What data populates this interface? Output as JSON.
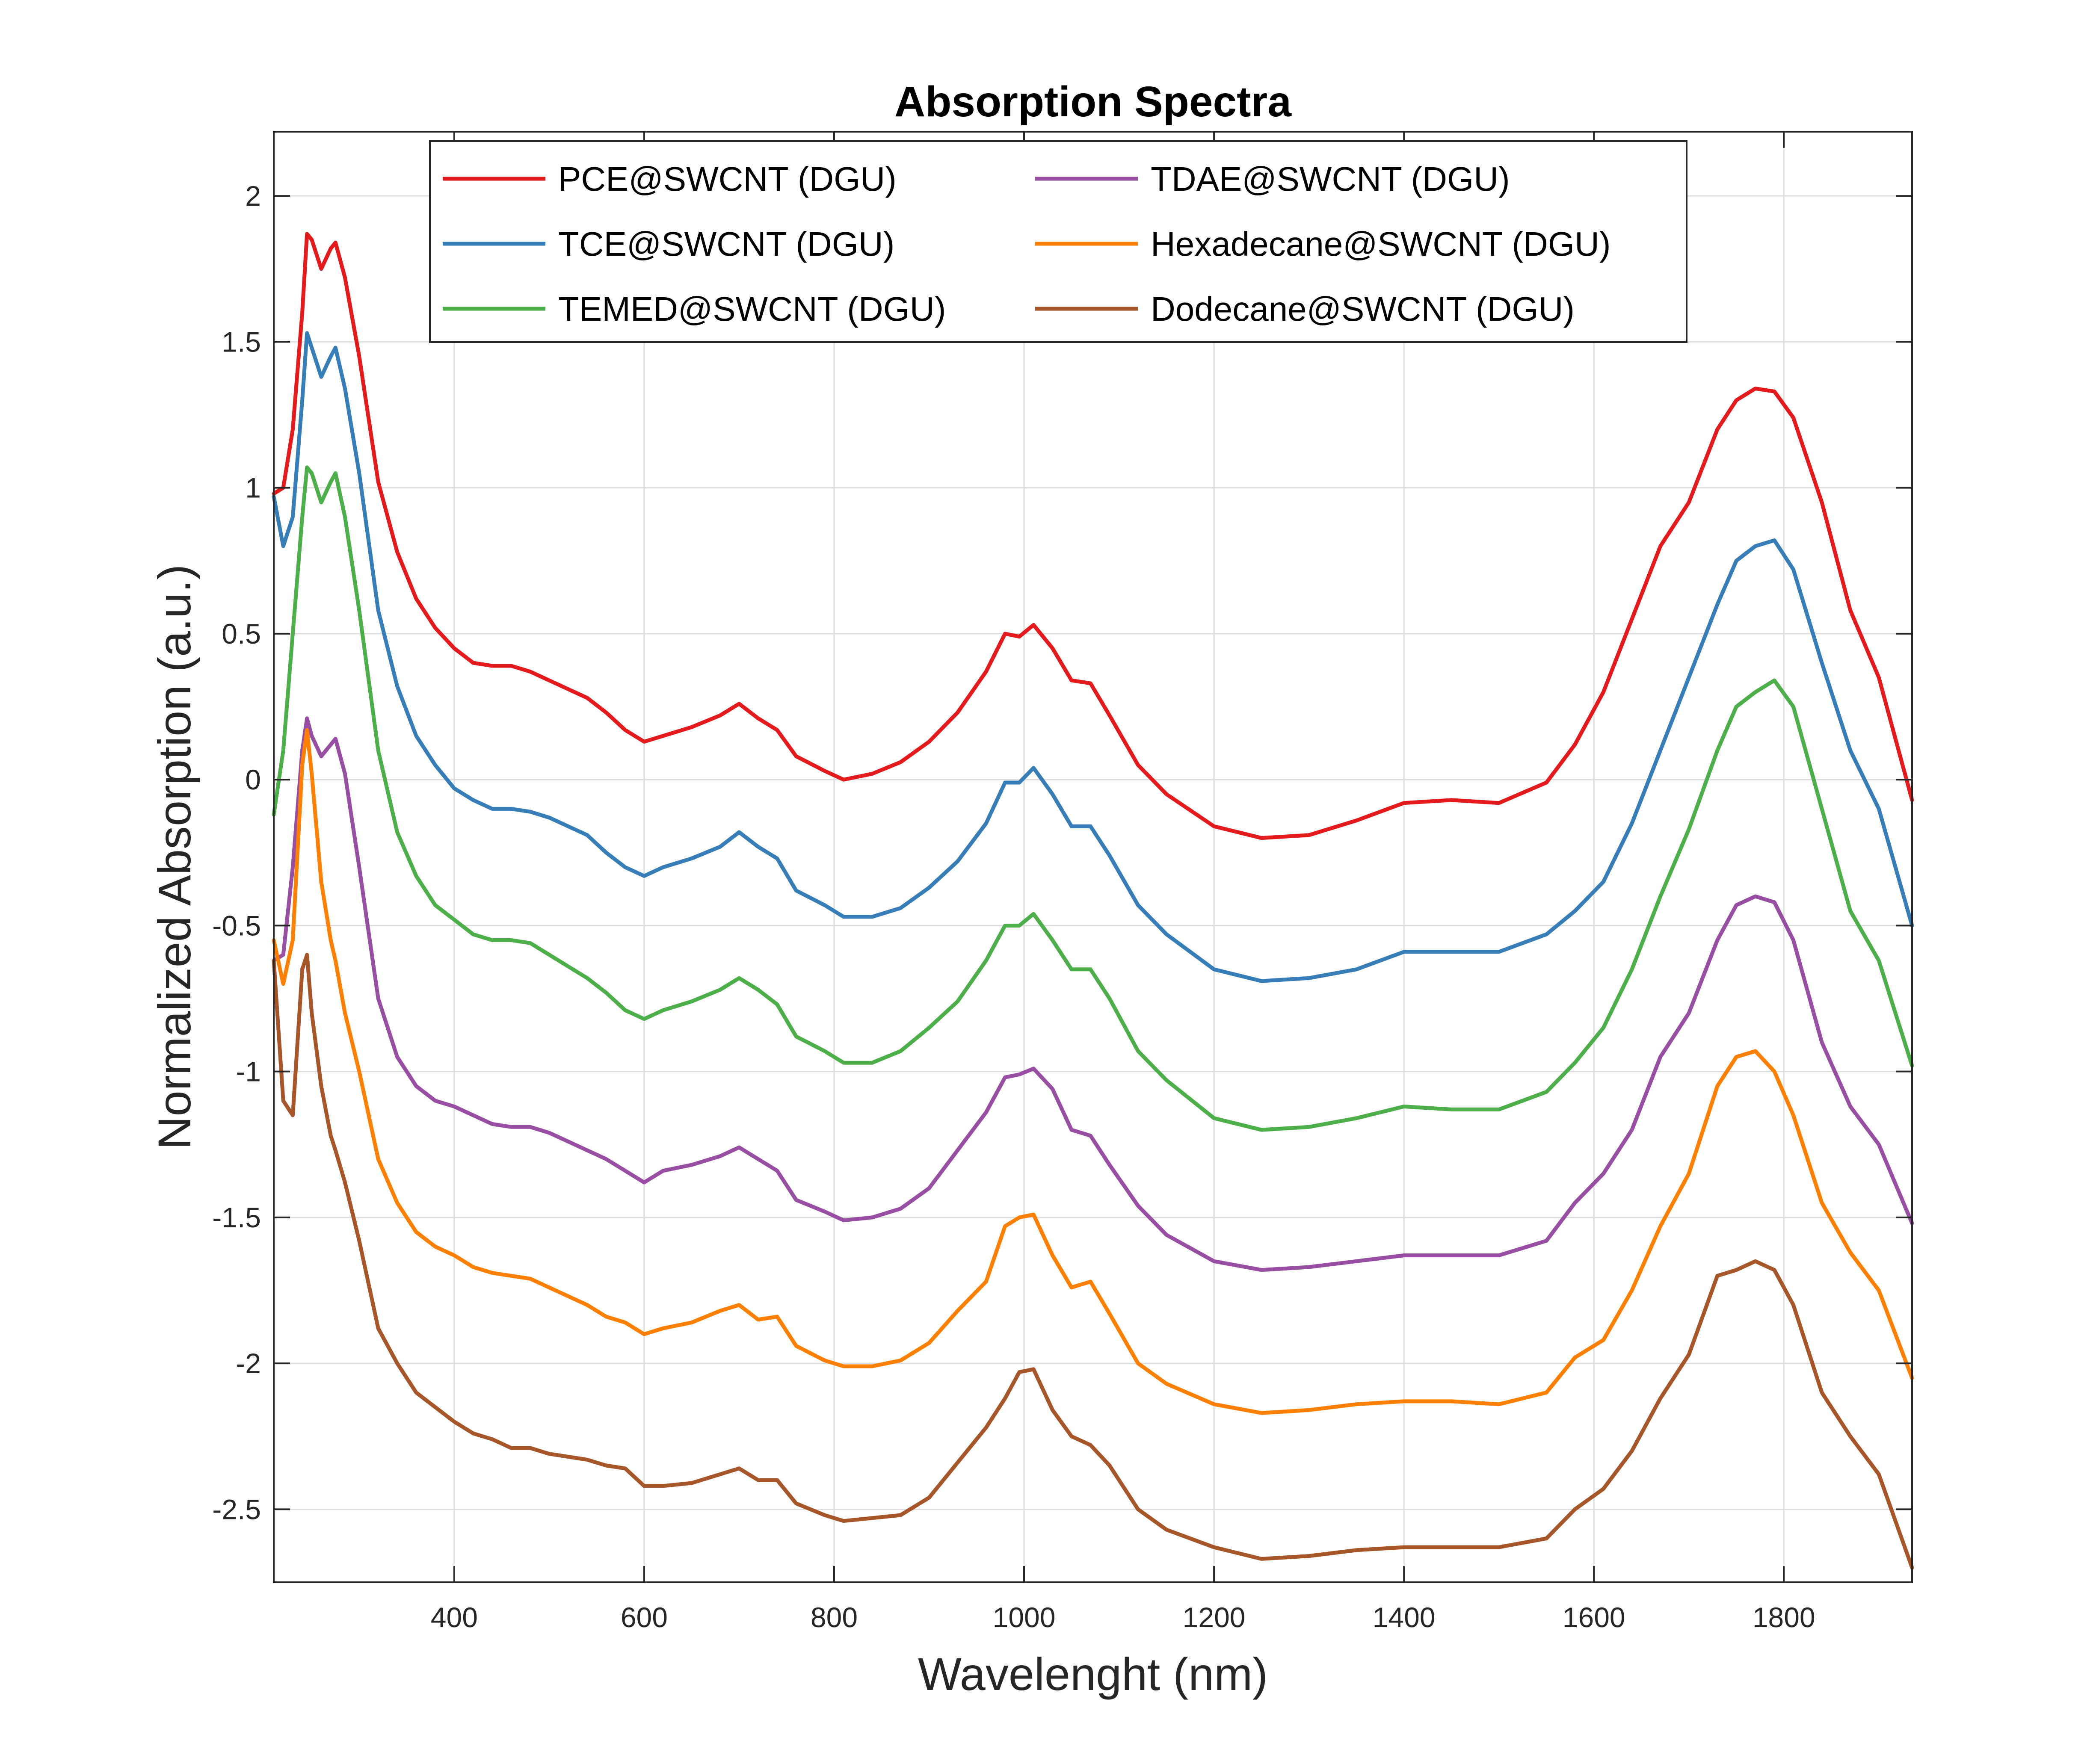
{
  "chart_data": {
    "type": "line",
    "title": "Absorption Spectra",
    "xlabel": "Wavelenght (nm)",
    "ylabel": "Normalized Absorption (a.u.)",
    "xlim": [
      210,
      1935
    ],
    "ylim": [
      -2.75,
      2.22
    ],
    "xticks": [
      400,
      600,
      800,
      1000,
      1200,
      1400,
      1600,
      1800
    ],
    "yticks": [
      2,
      1.5,
      1,
      0.5,
      0,
      -0.5,
      -1,
      -1.5,
      -2,
      -2.5
    ],
    "xtick_labels": [
      "400",
      "600",
      "800",
      "1000",
      "1200",
      "1400",
      "1600",
      "1800"
    ],
    "ytick_labels": [
      "2",
      "1.5",
      "1",
      "0.5",
      "0",
      "-0.5",
      "-1",
      "-1.5",
      "-2",
      "-2.5"
    ],
    "grid": true,
    "legend_position": "top-center, two columns",
    "x": [
      210,
      220,
      230,
      240,
      245,
      250,
      260,
      270,
      275,
      285,
      300,
      320,
      340,
      360,
      380,
      400,
      420,
      440,
      460,
      480,
      500,
      520,
      540,
      560,
      580,
      600,
      620,
      650,
      680,
      700,
      720,
      740,
      760,
      790,
      810,
      840,
      870,
      900,
      930,
      960,
      980,
      995,
      1010,
      1030,
      1050,
      1070,
      1090,
      1120,
      1150,
      1200,
      1250,
      1300,
      1350,
      1400,
      1450,
      1500,
      1550,
      1580,
      1610,
      1640,
      1670,
      1700,
      1730,
      1750,
      1770,
      1790,
      1810,
      1840,
      1870,
      1900,
      1935
    ],
    "series": [
      {
        "name": "PCE@SWCNT (DGU)",
        "color": "#e41a1c",
        "values": [
          0.98,
          1.0,
          1.2,
          1.6,
          1.87,
          1.85,
          1.75,
          1.82,
          1.84,
          1.72,
          1.45,
          1.02,
          0.78,
          0.62,
          0.52,
          0.45,
          0.4,
          0.39,
          0.39,
          0.37,
          0.34,
          0.31,
          0.28,
          0.23,
          0.17,
          0.13,
          0.15,
          0.18,
          0.22,
          0.26,
          0.21,
          0.17,
          0.08,
          0.03,
          0.0,
          0.02,
          0.06,
          0.13,
          0.23,
          0.37,
          0.5,
          0.49,
          0.53,
          0.45,
          0.34,
          0.33,
          0.22,
          0.05,
          -0.05,
          -0.16,
          -0.2,
          -0.19,
          -0.14,
          -0.08,
          -0.07,
          -0.08,
          -0.01,
          0.12,
          0.3,
          0.55,
          0.8,
          0.95,
          1.2,
          1.3,
          1.34,
          1.33,
          1.24,
          0.95,
          0.58,
          0.35,
          -0.07
        ]
      },
      {
        "name": "TCE@SWCNT (DGU)",
        "color": "#377eb8",
        "values": [
          0.97,
          0.8,
          0.9,
          1.3,
          1.53,
          1.48,
          1.38,
          1.45,
          1.48,
          1.34,
          1.05,
          0.58,
          0.32,
          0.15,
          0.05,
          -0.03,
          -0.07,
          -0.1,
          -0.1,
          -0.11,
          -0.13,
          -0.16,
          -0.19,
          -0.25,
          -0.3,
          -0.33,
          -0.3,
          -0.27,
          -0.23,
          -0.18,
          -0.23,
          -0.27,
          -0.38,
          -0.43,
          -0.47,
          -0.47,
          -0.44,
          -0.37,
          -0.28,
          -0.15,
          -0.01,
          -0.01,
          0.04,
          -0.05,
          -0.16,
          -0.16,
          -0.26,
          -0.43,
          -0.53,
          -0.65,
          -0.69,
          -0.68,
          -0.65,
          -0.59,
          -0.59,
          -0.59,
          -0.53,
          -0.45,
          -0.35,
          -0.15,
          0.1,
          0.35,
          0.6,
          0.75,
          0.8,
          0.82,
          0.72,
          0.4,
          0.1,
          -0.1,
          -0.5
        ]
      },
      {
        "name": "TEMED@SWCNT (DGU)",
        "color": "#4daf4a",
        "values": [
          -0.12,
          0.1,
          0.5,
          0.9,
          1.07,
          1.05,
          0.95,
          1.02,
          1.05,
          0.9,
          0.58,
          0.1,
          -0.18,
          -0.33,
          -0.43,
          -0.48,
          -0.53,
          -0.55,
          -0.55,
          -0.56,
          -0.6,
          -0.64,
          -0.68,
          -0.73,
          -0.79,
          -0.82,
          -0.79,
          -0.76,
          -0.72,
          -0.68,
          -0.72,
          -0.77,
          -0.88,
          -0.93,
          -0.97,
          -0.97,
          -0.93,
          -0.85,
          -0.76,
          -0.62,
          -0.5,
          -0.5,
          -0.46,
          -0.55,
          -0.65,
          -0.65,
          -0.75,
          -0.93,
          -1.03,
          -1.16,
          -1.2,
          -1.19,
          -1.16,
          -1.12,
          -1.13,
          -1.13,
          -1.07,
          -0.97,
          -0.85,
          -0.65,
          -0.4,
          -0.17,
          0.1,
          0.25,
          0.3,
          0.34,
          0.25,
          -0.1,
          -0.45,
          -0.62,
          -0.98
        ]
      },
      {
        "name": "TDAE@SWCNT (DGU)",
        "color": "#984ea3",
        "values": [
          -0.62,
          -0.6,
          -0.3,
          0.1,
          0.21,
          0.15,
          0.08,
          0.12,
          0.14,
          0.02,
          -0.3,
          -0.75,
          -0.95,
          -1.05,
          -1.1,
          -1.12,
          -1.15,
          -1.18,
          -1.19,
          -1.19,
          -1.21,
          -1.24,
          -1.27,
          -1.3,
          -1.34,
          -1.38,
          -1.34,
          -1.32,
          -1.29,
          -1.26,
          -1.3,
          -1.34,
          -1.44,
          -1.48,
          -1.51,
          -1.5,
          -1.47,
          -1.4,
          -1.27,
          -1.14,
          -1.02,
          -1.01,
          -0.99,
          -1.06,
          -1.2,
          -1.22,
          -1.32,
          -1.46,
          -1.56,
          -1.65,
          -1.68,
          -1.67,
          -1.65,
          -1.63,
          -1.63,
          -1.63,
          -1.58,
          -1.45,
          -1.35,
          -1.2,
          -0.95,
          -0.8,
          -0.55,
          -0.43,
          -0.4,
          -0.42,
          -0.55,
          -0.9,
          -1.12,
          -1.25,
          -1.52
        ]
      },
      {
        "name": "Hexadecane@SWCNT (DGU)",
        "color": "#ff7f00",
        "values": [
          -0.55,
          -0.7,
          -0.55,
          0.05,
          0.17,
          0.02,
          -0.35,
          -0.55,
          -0.62,
          -0.8,
          -1.0,
          -1.3,
          -1.45,
          -1.55,
          -1.6,
          -1.63,
          -1.67,
          -1.69,
          -1.7,
          -1.71,
          -1.74,
          -1.77,
          -1.8,
          -1.84,
          -1.86,
          -1.9,
          -1.88,
          -1.86,
          -1.82,
          -1.8,
          -1.85,
          -1.84,
          -1.94,
          -1.99,
          -2.01,
          -2.01,
          -1.99,
          -1.93,
          -1.82,
          -1.72,
          -1.53,
          -1.5,
          -1.49,
          -1.63,
          -1.74,
          -1.72,
          -1.83,
          -2.0,
          -2.07,
          -2.14,
          -2.17,
          -2.16,
          -2.14,
          -2.13,
          -2.13,
          -2.14,
          -2.1,
          -1.98,
          -1.92,
          -1.75,
          -1.53,
          -1.35,
          -1.05,
          -0.95,
          -0.93,
          -1.0,
          -1.15,
          -1.45,
          -1.62,
          -1.75,
          -2.05
        ]
      },
      {
        "name": "Dodecane@SWCNT (DGU)",
        "color": "#a65628",
        "values": [
          -0.62,
          -1.1,
          -1.15,
          -0.65,
          -0.6,
          -0.8,
          -1.05,
          -1.22,
          -1.27,
          -1.38,
          -1.58,
          -1.88,
          -2.0,
          -2.1,
          -2.15,
          -2.2,
          -2.24,
          -2.26,
          -2.29,
          -2.29,
          -2.31,
          -2.32,
          -2.33,
          -2.35,
          -2.36,
          -2.42,
          -2.42,
          -2.41,
          -2.38,
          -2.36,
          -2.4,
          -2.4,
          -2.48,
          -2.52,
          -2.54,
          -2.53,
          -2.52,
          -2.46,
          -2.34,
          -2.22,
          -2.12,
          -2.03,
          -2.02,
          -2.16,
          -2.25,
          -2.28,
          -2.35,
          -2.5,
          -2.57,
          -2.63,
          -2.67,
          -2.66,
          -2.64,
          -2.63,
          -2.63,
          -2.63,
          -2.6,
          -2.5,
          -2.43,
          -2.3,
          -2.12,
          -1.97,
          -1.7,
          -1.68,
          -1.65,
          -1.68,
          -1.8,
          -2.1,
          -2.25,
          -2.38,
          -2.7
        ]
      }
    ]
  }
}
